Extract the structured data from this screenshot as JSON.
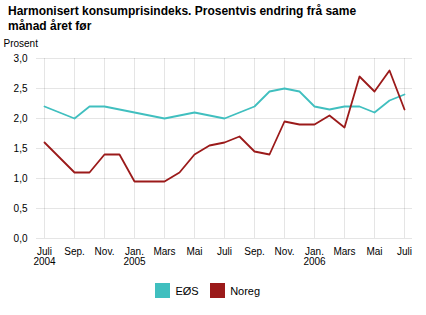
{
  "chart_data": {
    "type": "line",
    "title": "Harmonisert konsumprisindeks. Prosentvis endring frå same\nmånad året før",
    "ylabel": "Prosent",
    "categories": [
      "Juli\n2004",
      null,
      "Sep.",
      null,
      "Nov.",
      null,
      "Jan.\n2005",
      null,
      "Mars",
      null,
      "Mai",
      null,
      "Juli",
      null,
      "Sep.",
      null,
      "Nov.",
      null,
      "Jan.\n2006",
      null,
      "Mars",
      null,
      "Mai",
      null,
      "Juli"
    ],
    "series": [
      {
        "name": "EØS",
        "color": "#40bfbf",
        "values": [
          2.2,
          2.1,
          2.0,
          2.2,
          2.2,
          2.15,
          2.1,
          2.05,
          2.0,
          2.05,
          2.1,
          2.05,
          2.0,
          2.1,
          2.2,
          2.45,
          2.5,
          2.45,
          2.2,
          2.15,
          2.2,
          2.2,
          2.1,
          2.3,
          2.4
        ]
      },
      {
        "name": "Noreg",
        "color": "#9b1a1a",
        "values": [
          1.6,
          1.35,
          1.1,
          1.1,
          1.4,
          1.4,
          0.95,
          0.95,
          0.95,
          1.1,
          1.4,
          1.55,
          1.6,
          1.7,
          1.45,
          1.4,
          1.95,
          1.9,
          1.9,
          2.05,
          1.85,
          2.7,
          2.45,
          2.8,
          2.15
        ]
      }
    ],
    "ylim": [
      0.0,
      3.0
    ],
    "yticks": [
      {
        "value": 0.0,
        "label": "0,0"
      },
      {
        "value": 0.5,
        "label": "0,5"
      },
      {
        "value": 1.0,
        "label": "1,0"
      },
      {
        "value": 1.5,
        "label": "1,5"
      },
      {
        "value": 2.0,
        "label": "2,0"
      },
      {
        "value": 2.5,
        "label": "2,5"
      },
      {
        "value": 3.0,
        "label": "3,0"
      }
    ],
    "grid": true,
    "legend": "bottom"
  }
}
